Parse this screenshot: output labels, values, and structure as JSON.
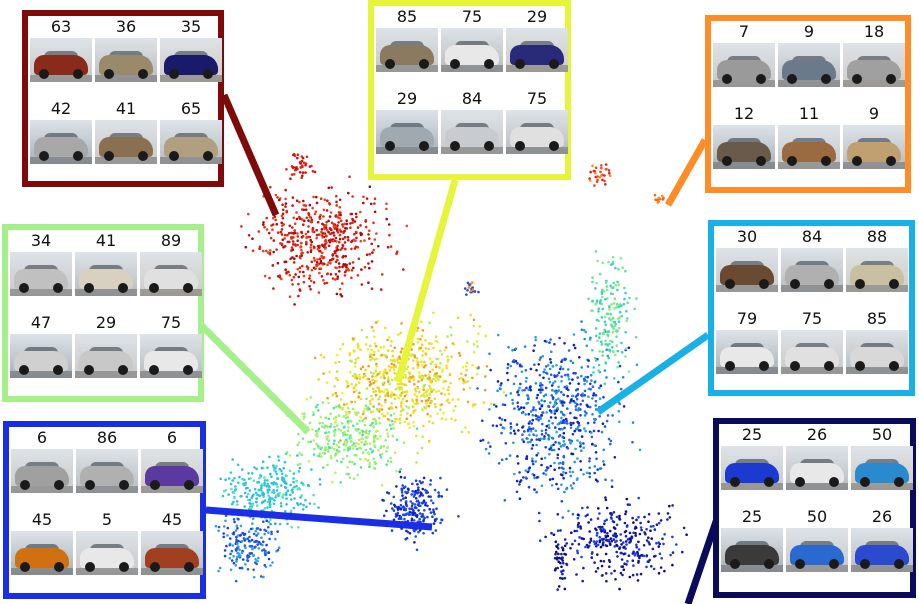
{
  "chart_data": {
    "type": "scatter",
    "title": "",
    "xlabel": "",
    "ylabel": "",
    "axes_visible": false,
    "grid": false,
    "colormap": "jet",
    "clusters": [
      {
        "id": "sedans",
        "color": "#cc1111",
        "frame": "#7f0a0a",
        "labels": [
          "63",
          "36",
          "35",
          "42",
          "41",
          "65"
        ]
      },
      {
        "id": "minivans",
        "color": "#f2f23a",
        "frame": "#e6f53a",
        "labels": [
          "85",
          "75",
          "29",
          "29",
          "84",
          "75"
        ]
      },
      {
        "id": "pickups",
        "color": "#ff8c1a",
        "frame": "#ff8c26",
        "labels": [
          "7",
          "9",
          "18",
          "12",
          "11",
          "9"
        ]
      },
      {
        "id": "compact-cars",
        "color": "#1aa6e6",
        "frame": "#17b1e8",
        "labels": [
          "30",
          "84",
          "88",
          "79",
          "75",
          "85"
        ]
      },
      {
        "id": "suvs",
        "color": "#9ae67a",
        "frame": "#a6f08c",
        "labels": [
          "34",
          "41",
          "89",
          "47",
          "29",
          "75"
        ]
      },
      {
        "id": "sports-cars",
        "color": "#1a3cf2",
        "frame": "#1a2ee8",
        "labels": [
          "6",
          "86",
          "6",
          "45",
          "5",
          "45"
        ]
      },
      {
        "id": "hummers",
        "color": "#0a0a7a",
        "frame": "#0b0b5c",
        "labels": [
          "25",
          "26",
          "50",
          "25",
          "50",
          "26"
        ]
      }
    ],
    "thumbnail_colors": {
      "sedans": [
        "#8a2a1a",
        "#9a8a6a",
        "#1a1a6a",
        "#a8a8a8",
        "#8a7050",
        "#b0a080"
      ],
      "minivans": [
        "#8a7a60",
        "#e8e8e8",
        "#2a2a7a",
        "#a0a8b0",
        "#c8ccd0",
        "#e0e0e0"
      ],
      "pickups": [
        "#9a9a9a",
        "#6a7a8a",
        "#a0a0a0",
        "#6a5a4a",
        "#9a6a40",
        "#c0a070"
      ],
      "compact-cars": [
        "#6a4a30",
        "#b0b0b0",
        "#c8c0a0",
        "#e8e8e8",
        "#e0e0e0",
        "#d8d8d8"
      ],
      "suvs": [
        "#c0c0c0",
        "#d8d0c0",
        "#e0e0e0",
        "#d0d0d0",
        "#c8c8c8",
        "#e8e8e8"
      ],
      "sports-cars": [
        "#a0a0a0",
        "#b0b0b0",
        "#5a3aa0",
        "#d07010",
        "#e8e8e8",
        "#a04020"
      ],
      "hummers": [
        "#1a3ad0",
        "#e8e8e8",
        "#2a8ad0",
        "#3a3a3a",
        "#2a6ad0",
        "#2a4ad0"
      ]
    }
  }
}
